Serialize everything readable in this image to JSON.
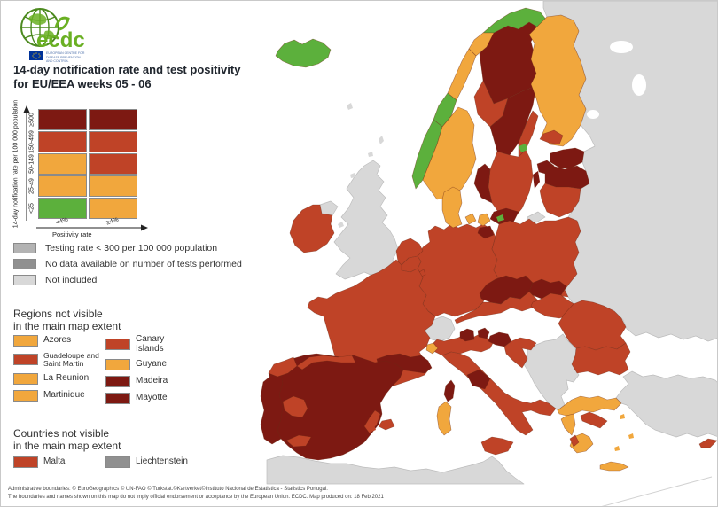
{
  "header": {
    "brand": "ecdc",
    "brand_subtitle": "EUROPEAN CENTRE FOR DISEASE PREVENTION AND CONTROL",
    "title_line1": "14-day notification rate and test positivity",
    "title_line2": "for EU/EEA weeks 05 - 06"
  },
  "matrix_legend": {
    "y_axis_label": "14-day notification rate per 100 000 population",
    "x_axis_label": "Positivity rate",
    "row_labels": [
      "≥500",
      "150-499",
      "50-149",
      "25-49",
      "<25"
    ],
    "col_labels": [
      "<4%",
      "≥4%"
    ],
    "cells": [
      [
        "dark_red",
        "dark_red"
      ],
      [
        "red",
        "red"
      ],
      [
        "orange",
        "red"
      ],
      [
        "orange",
        "orange"
      ],
      [
        "green",
        "orange"
      ]
    ]
  },
  "status_legend": [
    {
      "label": "Testing rate < 300 per 100 000 population",
      "color_key": "grey_testing"
    },
    {
      "label": "No data available on number of tests performed",
      "color_key": "grey_nodata"
    },
    {
      "label": "Not included",
      "color_key": "not_included"
    }
  ],
  "regions_section": {
    "title_line1": "Regions not visible",
    "title_line2": "in the main map extent",
    "items_left": [
      {
        "label": "Azores",
        "color_key": "orange"
      },
      {
        "label": "Guadeloupe and Saint Martin",
        "color_key": "red"
      },
      {
        "label": "La Reunion",
        "color_key": "orange"
      },
      {
        "label": "Martinique",
        "color_key": "orange"
      }
    ],
    "items_right": [
      {
        "label": "Canary Islands",
        "color_key": "red"
      },
      {
        "label": "Guyane",
        "color_key": "orange"
      },
      {
        "label": "Madeira",
        "color_key": "dark_red"
      },
      {
        "label": "Mayotte",
        "color_key": "dark_red"
      }
    ]
  },
  "countries_section": {
    "title_line1": "Countries not visible",
    "title_line2": "in the main map extent",
    "items": [
      {
        "label": "Malta",
        "color_key": "red"
      },
      {
        "label": "Liechtenstein",
        "color_key": "grey_nodata"
      }
    ]
  },
  "footer": {
    "line1": "Administrative boundaries: © EuroGeographics © UN-FAO © Turkstat.©Kartverket©Instituto Nacional de Estatistica - Statistics Portugal.",
    "line2": "The boundaries and names shown on this map do not imply official endorsement or acceptance by the European Union. ECDC. Map produced on: 18 Feb 2021"
  },
  "colors": {
    "dark_red": "#7d1912",
    "red": "#bf4327",
    "orange": "#f1a73d",
    "green": "#5cb03c",
    "not_included": "#d8d8d8",
    "grey_testing": "#b3b3b3",
    "grey_nodata": "#909090",
    "water": "#ffffff",
    "logo_green": "#6ab023",
    "eu_flag_blue": "#003399",
    "eu_flag_star": "#ffcc00"
  },
  "map": {
    "regions": [
      {
        "id": "russia-east",
        "color_key": "not_included"
      },
      {
        "id": "north-africa",
        "color_key": "not_included"
      },
      {
        "id": "turkey",
        "color_key": "not_included"
      },
      {
        "id": "west-balkans",
        "color_key": "not_included"
      },
      {
        "id": "uk",
        "color_key": "not_included"
      },
      {
        "id": "northern-ireland",
        "color_key": "not_included"
      },
      {
        "id": "switzerland",
        "color_key": "not_included"
      },
      {
        "id": "kaliningrad",
        "color_key": "not_included"
      },
      {
        "id": "isle-of-man",
        "color_key": "not_included"
      },
      {
        "id": "faroe",
        "color_key": "not_included"
      },
      {
        "id": "shetland",
        "color_key": "not_included"
      },
      {
        "id": "orkney",
        "color_key": "not_included"
      },
      {
        "id": "hebrides",
        "color_key": "not_included"
      },
      {
        "id": "iceland",
        "color_key": "green"
      },
      {
        "id": "sweden-north",
        "color_key": "dark_red"
      },
      {
        "id": "sweden-mid",
        "color_key": "red"
      },
      {
        "id": "sweden-center",
        "color_key": "dark_red"
      },
      {
        "id": "sweden-stockholm",
        "color_key": "red"
      },
      {
        "id": "sweden-south",
        "color_key": "red"
      },
      {
        "id": "sweden-west",
        "color_key": "dark_red"
      },
      {
        "id": "skane",
        "color_key": "dark_red"
      },
      {
        "id": "gotland",
        "color_key": "dark_red"
      },
      {
        "id": "aland",
        "color_key": "green"
      },
      {
        "id": "bornholm",
        "color_key": "green"
      },
      {
        "id": "norway-finnmark",
        "color_key": "green"
      },
      {
        "id": "norway-troms",
        "color_key": "orange"
      },
      {
        "id": "norway-nordland",
        "color_key": "orange"
      },
      {
        "id": "norway-trondelag",
        "color_key": "green"
      },
      {
        "id": "norway-west",
        "color_key": "green"
      },
      {
        "id": "norway-southeast",
        "color_key": "orange"
      },
      {
        "id": "finland-main",
        "color_key": "orange"
      },
      {
        "id": "finland-southwest",
        "color_key": "red"
      },
      {
        "id": "estonia",
        "color_key": "dark_red"
      },
      {
        "id": "saaremaa",
        "color_key": "dark_red"
      },
      {
        "id": "latvia",
        "color_key": "dark_red"
      },
      {
        "id": "lithuania",
        "color_key": "red"
      },
      {
        "id": "germany",
        "color_key": "red"
      },
      {
        "id": "germany-ne",
        "color_key": "dark_red"
      },
      {
        "id": "denmark-jutland",
        "color_key": "orange"
      },
      {
        "id": "denmark-funen",
        "color_key": "orange"
      },
      {
        "id": "denmark-zealand",
        "color_key": "orange"
      },
      {
        "id": "poland",
        "color_key": "red"
      },
      {
        "id": "austria",
        "color_key": "red"
      },
      {
        "id": "czechia",
        "color_key": "dark_red"
      },
      {
        "id": "slovakia",
        "color_key": "dark_red"
      },
      {
        "id": "hungary",
        "color_key": "red"
      },
      {
        "id": "netherlands",
        "color_key": "red"
      },
      {
        "id": "belgium",
        "color_key": "red"
      },
      {
        "id": "luxembourg",
        "color_key": "red"
      },
      {
        "id": "france",
        "color_key": "red"
      },
      {
        "id": "france-south",
        "color_key": "dark_red"
      },
      {
        "id": "corsica",
        "color_key": "dark_red"
      },
      {
        "id": "spain",
        "color_key": "dark_red"
      },
      {
        "id": "portugal",
        "color_key": "dark_red"
      },
      {
        "id": "spain-galicia",
        "color_key": "red"
      },
      {
        "id": "spain-north",
        "color_key": "red"
      },
      {
        "id": "spain-extremadura",
        "color_key": "red"
      },
      {
        "id": "spain-sevilla",
        "color_key": "red"
      },
      {
        "id": "spain-murcia",
        "color_key": "red"
      },
      {
        "id": "mallorca",
        "color_key": "red"
      },
      {
        "id": "ibiza",
        "color_key": "red"
      },
      {
        "id": "italy-north",
        "color_key": "red"
      },
      {
        "id": "italy-altoadige",
        "color_key": "dark_red"
      },
      {
        "id": "italy-friuli",
        "color_key": "dark_red"
      },
      {
        "id": "italy-liguria",
        "color_key": "orange"
      },
      {
        "id": "italy-peninsula",
        "color_key": "red"
      },
      {
        "id": "italy-center",
        "color_key": "dark_red"
      },
      {
        "id": "sicily",
        "color_key": "red"
      },
      {
        "id": "sardinia",
        "color_key": "orange"
      },
      {
        "id": "slovenia",
        "color_key": "dark_red"
      },
      {
        "id": "croatia",
        "color_key": "red"
      },
      {
        "id": "romania",
        "color_key": "red"
      },
      {
        "id": "bulgaria",
        "color_key": "red"
      },
      {
        "id": "greece-north",
        "color_key": "orange"
      },
      {
        "id": "greece-epirus",
        "color_key": "orange"
      },
      {
        "id": "greece-attica",
        "color_key": "red"
      },
      {
        "id": "greece-peloponnese",
        "color_key": "orange"
      },
      {
        "id": "greece-pelopwest",
        "color_key": "red"
      },
      {
        "id": "crete",
        "color_key": "orange"
      },
      {
        "id": "aegean-1",
        "color_key": "orange"
      },
      {
        "id": "aegean-2",
        "color_key": "orange"
      },
      {
        "id": "aegean-3",
        "color_key": "orange"
      },
      {
        "id": "cyprus",
        "color_key": "red"
      },
      {
        "id": "ireland",
        "color_key": "red"
      }
    ]
  }
}
